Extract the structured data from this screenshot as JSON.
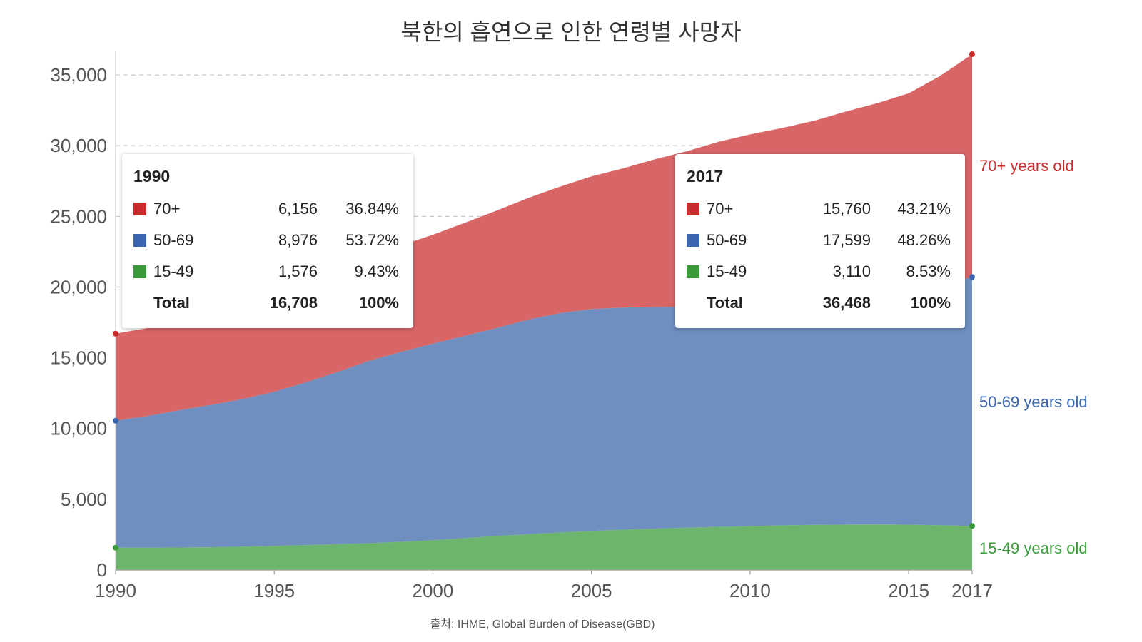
{
  "chart_data": {
    "type": "area",
    "stacked": true,
    "title": "북한의 흡연으로 인한 연령별 사망자",
    "x": [
      1990,
      1991,
      1992,
      1993,
      1994,
      1995,
      1996,
      1997,
      1998,
      1999,
      2000,
      2001,
      2002,
      2003,
      2004,
      2005,
      2006,
      2007,
      2008,
      2009,
      2010,
      2011,
      2012,
      2013,
      2014,
      2015,
      2016,
      2017
    ],
    "series": [
      {
        "name": "15-49",
        "label": "15-49 years old",
        "color": "#6db46d",
        "marker_color": "#3a9a3a",
        "label_color": "#3a9a3a",
        "values": [
          1576,
          1580,
          1590,
          1610,
          1650,
          1700,
          1760,
          1830,
          1900,
          1990,
          2100,
          2250,
          2400,
          2530,
          2650,
          2760,
          2850,
          2920,
          2990,
          3050,
          3100,
          3150,
          3190,
          3210,
          3220,
          3200,
          3160,
          3110
        ]
      },
      {
        "name": "50-69",
        "label": "50-69 years old",
        "color": "#6e8fbf",
        "marker_color": "#3a66b0",
        "label_color": "#3a66b0",
        "values": [
          8976,
          9300,
          9700,
          10060,
          10430,
          10900,
          11500,
          12170,
          12900,
          13430,
          13900,
          14300,
          14700,
          15170,
          15500,
          15690,
          15700,
          15670,
          15610,
          15550,
          15450,
          15450,
          15560,
          15740,
          15990,
          16380,
          16940,
          17599
        ]
      },
      {
        "name": "70+",
        "label": "70+ years old",
        "color": "#d86667",
        "marker_color": "#cc2b2e",
        "label_color": "#cc2b2e",
        "values": [
          6156,
          6220,
          6300,
          6400,
          6500,
          6600,
          6780,
          7020,
          7300,
          7530,
          7700,
          7990,
          8300,
          8600,
          8950,
          9380,
          9850,
          10450,
          11000,
          11670,
          12250,
          12650,
          13000,
          13450,
          13790,
          14120,
          14840,
          15760
        ]
      }
    ],
    "xticks": [
      "1990",
      "1995",
      "2000",
      "2005",
      "2010",
      "2015",
      "2017"
    ],
    "yticks": [
      "0",
      "5,000",
      "10,000",
      "15,000",
      "20,000",
      "25,000",
      "30,000",
      "35,000"
    ],
    "ylim": [
      0,
      36468
    ],
    "xlim": [
      1990,
      2017
    ],
    "grid": true
  },
  "source": "출처: IHME, Global Burden of Disease(GBD)",
  "tooltips": [
    {
      "year": "1990",
      "rows": [
        {
          "label": "70+",
          "value": "6,156",
          "pct": "36.84%",
          "color": "#cc2b2e"
        },
        {
          "label": "50-69",
          "value": "8,976",
          "pct": "53.72%",
          "color": "#3a66b0"
        },
        {
          "label": "15-49",
          "value": "1,576",
          "pct": "9.43%",
          "color": "#3a9a3a"
        }
      ],
      "total": {
        "label": "Total",
        "value": "16,708",
        "pct": "100%"
      }
    },
    {
      "year": "2017",
      "rows": [
        {
          "label": "70+",
          "value": "15,760",
          "pct": "43.21%",
          "color": "#cc2b2e"
        },
        {
          "label": "50-69",
          "value": "17,599",
          "pct": "48.26%",
          "color": "#3a66b0"
        },
        {
          "label": "15-49",
          "value": "3,110",
          "pct": "8.53%",
          "color": "#3a9a3a"
        }
      ],
      "total": {
        "label": "Total",
        "value": "36,468",
        "pct": "100%"
      }
    }
  ]
}
